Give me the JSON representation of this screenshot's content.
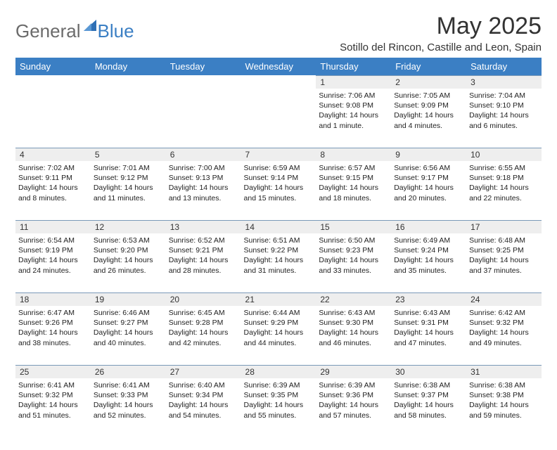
{
  "brand": {
    "part1": "General",
    "part2": "Blue"
  },
  "title": "May 2025",
  "subtitle": "Sotillo del Rincon, Castille and Leon, Spain",
  "weekday_labels": [
    "Sunday",
    "Monday",
    "Tuesday",
    "Wednesday",
    "Thursday",
    "Friday",
    "Saturday"
  ],
  "colors": {
    "header_bg": "#3b7fc4",
    "header_fg": "#ffffff",
    "daynum_bg": "#eeeeee",
    "border": "#7a99b8",
    "text": "#222222",
    "logo_gray": "#6b6b6b",
    "logo_blue": "#3b7fc4",
    "background": "#ffffff"
  },
  "typography": {
    "title_fontsize": 34,
    "subtitle_fontsize": 15,
    "header_fontsize": 13,
    "daynum_fontsize": 12,
    "body_fontsize": 10.5,
    "logo_fontsize": 26
  },
  "layout": {
    "columns": 7,
    "rows": 5,
    "first_weekday_index": 4
  },
  "weeks": [
    [
      null,
      null,
      null,
      null,
      {
        "n": "1",
        "sr": "Sunrise: 7:06 AM",
        "ss": "Sunset: 9:08 PM",
        "dl": "Daylight: 14 hours and 1 minute."
      },
      {
        "n": "2",
        "sr": "Sunrise: 7:05 AM",
        "ss": "Sunset: 9:09 PM",
        "dl": "Daylight: 14 hours and 4 minutes."
      },
      {
        "n": "3",
        "sr": "Sunrise: 7:04 AM",
        "ss": "Sunset: 9:10 PM",
        "dl": "Daylight: 14 hours and 6 minutes."
      }
    ],
    [
      {
        "n": "4",
        "sr": "Sunrise: 7:02 AM",
        "ss": "Sunset: 9:11 PM",
        "dl": "Daylight: 14 hours and 8 minutes."
      },
      {
        "n": "5",
        "sr": "Sunrise: 7:01 AM",
        "ss": "Sunset: 9:12 PM",
        "dl": "Daylight: 14 hours and 11 minutes."
      },
      {
        "n": "6",
        "sr": "Sunrise: 7:00 AM",
        "ss": "Sunset: 9:13 PM",
        "dl": "Daylight: 14 hours and 13 minutes."
      },
      {
        "n": "7",
        "sr": "Sunrise: 6:59 AM",
        "ss": "Sunset: 9:14 PM",
        "dl": "Daylight: 14 hours and 15 minutes."
      },
      {
        "n": "8",
        "sr": "Sunrise: 6:57 AM",
        "ss": "Sunset: 9:15 PM",
        "dl": "Daylight: 14 hours and 18 minutes."
      },
      {
        "n": "9",
        "sr": "Sunrise: 6:56 AM",
        "ss": "Sunset: 9:17 PM",
        "dl": "Daylight: 14 hours and 20 minutes."
      },
      {
        "n": "10",
        "sr": "Sunrise: 6:55 AM",
        "ss": "Sunset: 9:18 PM",
        "dl": "Daylight: 14 hours and 22 minutes."
      }
    ],
    [
      {
        "n": "11",
        "sr": "Sunrise: 6:54 AM",
        "ss": "Sunset: 9:19 PM",
        "dl": "Daylight: 14 hours and 24 minutes."
      },
      {
        "n": "12",
        "sr": "Sunrise: 6:53 AM",
        "ss": "Sunset: 9:20 PM",
        "dl": "Daylight: 14 hours and 26 minutes."
      },
      {
        "n": "13",
        "sr": "Sunrise: 6:52 AM",
        "ss": "Sunset: 9:21 PM",
        "dl": "Daylight: 14 hours and 28 minutes."
      },
      {
        "n": "14",
        "sr": "Sunrise: 6:51 AM",
        "ss": "Sunset: 9:22 PM",
        "dl": "Daylight: 14 hours and 31 minutes."
      },
      {
        "n": "15",
        "sr": "Sunrise: 6:50 AM",
        "ss": "Sunset: 9:23 PM",
        "dl": "Daylight: 14 hours and 33 minutes."
      },
      {
        "n": "16",
        "sr": "Sunrise: 6:49 AM",
        "ss": "Sunset: 9:24 PM",
        "dl": "Daylight: 14 hours and 35 minutes."
      },
      {
        "n": "17",
        "sr": "Sunrise: 6:48 AM",
        "ss": "Sunset: 9:25 PM",
        "dl": "Daylight: 14 hours and 37 minutes."
      }
    ],
    [
      {
        "n": "18",
        "sr": "Sunrise: 6:47 AM",
        "ss": "Sunset: 9:26 PM",
        "dl": "Daylight: 14 hours and 38 minutes."
      },
      {
        "n": "19",
        "sr": "Sunrise: 6:46 AM",
        "ss": "Sunset: 9:27 PM",
        "dl": "Daylight: 14 hours and 40 minutes."
      },
      {
        "n": "20",
        "sr": "Sunrise: 6:45 AM",
        "ss": "Sunset: 9:28 PM",
        "dl": "Daylight: 14 hours and 42 minutes."
      },
      {
        "n": "21",
        "sr": "Sunrise: 6:44 AM",
        "ss": "Sunset: 9:29 PM",
        "dl": "Daylight: 14 hours and 44 minutes."
      },
      {
        "n": "22",
        "sr": "Sunrise: 6:43 AM",
        "ss": "Sunset: 9:30 PM",
        "dl": "Daylight: 14 hours and 46 minutes."
      },
      {
        "n": "23",
        "sr": "Sunrise: 6:43 AM",
        "ss": "Sunset: 9:31 PM",
        "dl": "Daylight: 14 hours and 47 minutes."
      },
      {
        "n": "24",
        "sr": "Sunrise: 6:42 AM",
        "ss": "Sunset: 9:32 PM",
        "dl": "Daylight: 14 hours and 49 minutes."
      }
    ],
    [
      {
        "n": "25",
        "sr": "Sunrise: 6:41 AM",
        "ss": "Sunset: 9:32 PM",
        "dl": "Daylight: 14 hours and 51 minutes."
      },
      {
        "n": "26",
        "sr": "Sunrise: 6:41 AM",
        "ss": "Sunset: 9:33 PM",
        "dl": "Daylight: 14 hours and 52 minutes."
      },
      {
        "n": "27",
        "sr": "Sunrise: 6:40 AM",
        "ss": "Sunset: 9:34 PM",
        "dl": "Daylight: 14 hours and 54 minutes."
      },
      {
        "n": "28",
        "sr": "Sunrise: 6:39 AM",
        "ss": "Sunset: 9:35 PM",
        "dl": "Daylight: 14 hours and 55 minutes."
      },
      {
        "n": "29",
        "sr": "Sunrise: 6:39 AM",
        "ss": "Sunset: 9:36 PM",
        "dl": "Daylight: 14 hours and 57 minutes."
      },
      {
        "n": "30",
        "sr": "Sunrise: 6:38 AM",
        "ss": "Sunset: 9:37 PM",
        "dl": "Daylight: 14 hours and 58 minutes."
      },
      {
        "n": "31",
        "sr": "Sunrise: 6:38 AM",
        "ss": "Sunset: 9:38 PM",
        "dl": "Daylight: 14 hours and 59 minutes."
      }
    ]
  ]
}
